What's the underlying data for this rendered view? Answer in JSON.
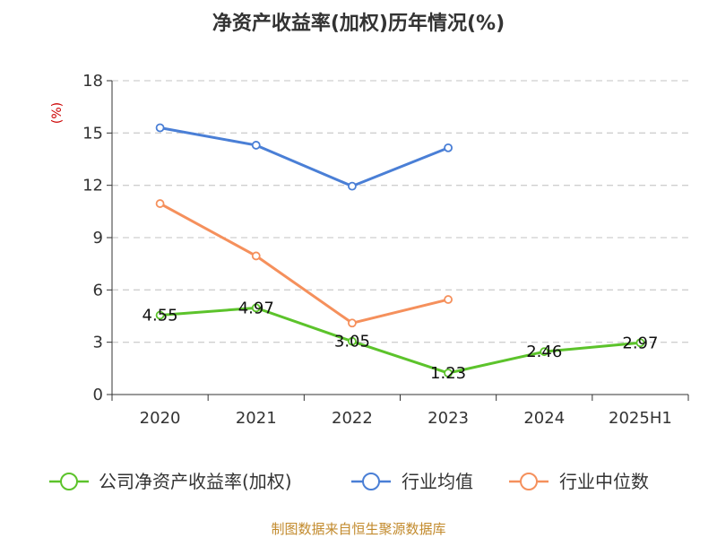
{
  "chart_data": {
    "type": "line",
    "title": "净资产收益率(加权)历年情况(%)",
    "ylabel": "(%)",
    "categories": [
      "2020",
      "2021",
      "2022",
      "2023",
      "2024",
      "2025H1"
    ],
    "y_ticks": [
      "0",
      "3",
      "6",
      "9",
      "12",
      "15",
      "18"
    ],
    "ylim": [
      0,
      18
    ],
    "grid": true,
    "legend_position": "bottom",
    "series": [
      {
        "name": "公司净资产收益率(加权)",
        "color": "#5cc32b",
        "values": [
          4.55,
          4.97,
          3.05,
          1.23,
          2.46,
          2.97
        ],
        "labels": [
          "4.55",
          "4.97",
          "3.05",
          "1.23",
          "2.46",
          "2.97"
        ]
      },
      {
        "name": "行业均值",
        "color": "#4a7fd6",
        "values": [
          15.3,
          14.3,
          11.95,
          14.15,
          null,
          null
        ]
      },
      {
        "name": "行业中位数",
        "color": "#f5905c",
        "values": [
          10.95,
          7.95,
          4.1,
          5.45,
          null,
          null
        ]
      }
    ]
  },
  "source": "制图数据来自恒生聚源数据库"
}
